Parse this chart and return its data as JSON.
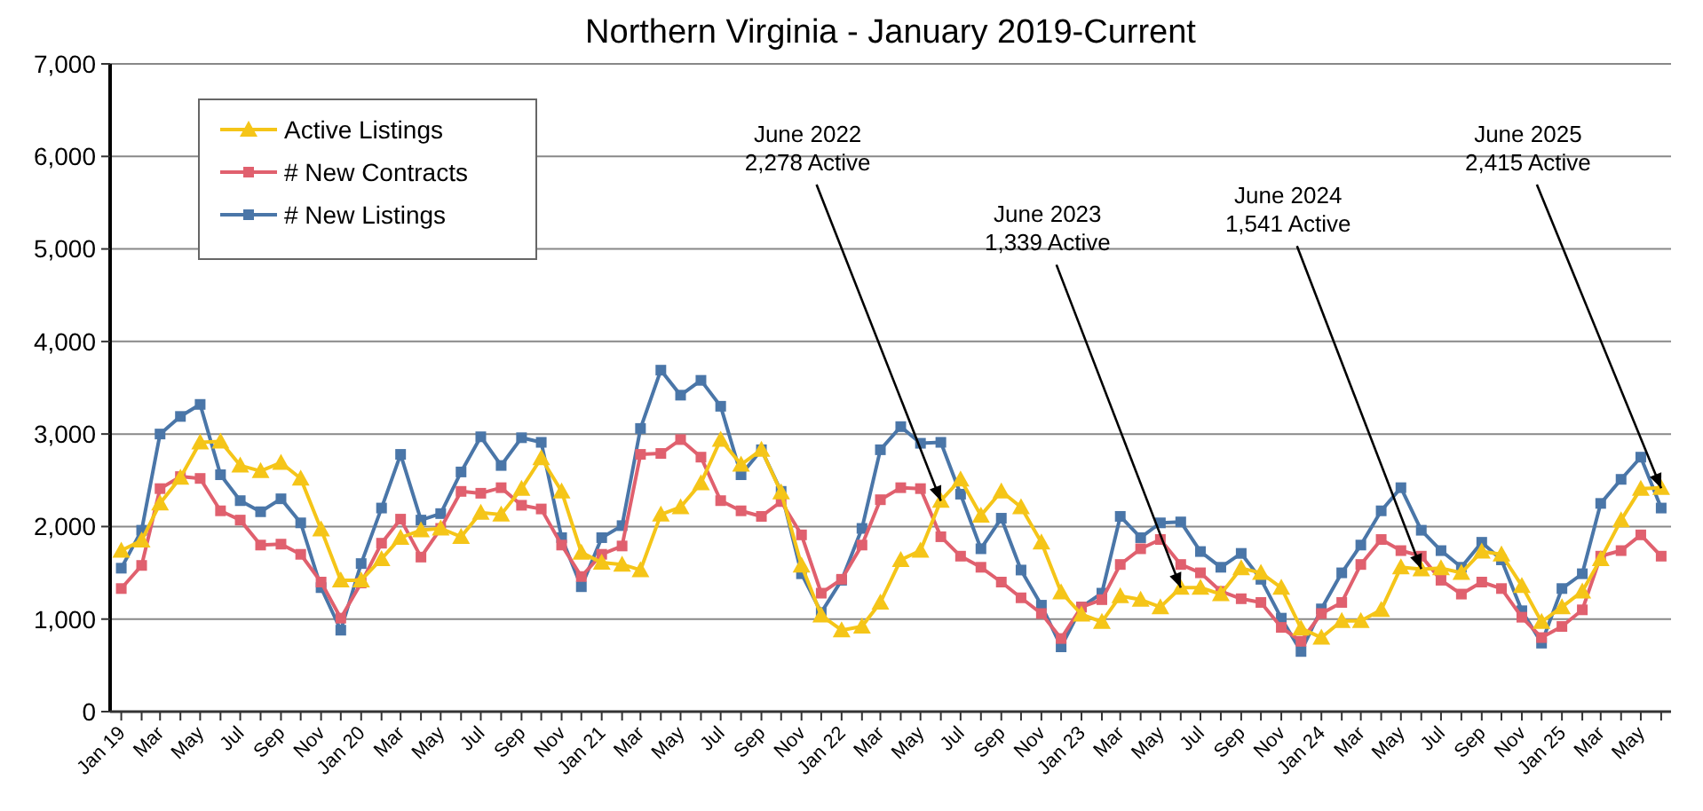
{
  "chart_data": {
    "type": "line",
    "title": "Northern Virginia - January 2019-Current",
    "x": [
      "2019-01",
      "2019-02",
      "2019-03",
      "2019-04",
      "2019-05",
      "2019-06",
      "2019-07",
      "2019-08",
      "2019-09",
      "2019-10",
      "2019-11",
      "2019-12",
      "2020-01",
      "2020-02",
      "2020-03",
      "2020-04",
      "2020-05",
      "2020-06",
      "2020-07",
      "2020-08",
      "2020-09",
      "2020-10",
      "2020-11",
      "2020-12",
      "2021-01",
      "2021-02",
      "2021-03",
      "2021-04",
      "2021-05",
      "2021-06",
      "2021-07",
      "2021-08",
      "2021-09",
      "2021-10",
      "2021-11",
      "2021-12",
      "2022-01",
      "2022-02",
      "2022-03",
      "2022-04",
      "2022-05",
      "2022-06",
      "2022-07",
      "2022-08",
      "2022-09",
      "2022-10",
      "2022-11",
      "2022-12",
      "2023-01",
      "2023-02",
      "2023-03",
      "2023-04",
      "2023-05",
      "2023-06",
      "2023-07",
      "2023-08",
      "2023-09",
      "2023-10",
      "2023-11",
      "2023-12",
      "2024-01",
      "2024-02",
      "2024-03",
      "2024-04",
      "2024-05",
      "2024-06",
      "2024-07",
      "2024-08",
      "2024-09",
      "2024-10",
      "2024-11",
      "2024-12",
      "2025-01",
      "2025-02",
      "2025-03",
      "2025-04",
      "2025-05",
      "2025-06"
    ],
    "series": [
      {
        "name": "Active Listings",
        "color": "#f5c518",
        "marker": "triangle",
        "values": [
          1740,
          1850,
          2250,
          2530,
          2910,
          2920,
          2660,
          2600,
          2690,
          2520,
          1970,
          1420,
          1420,
          1650,
          1880,
          1960,
          1980,
          1890,
          2150,
          2130,
          2410,
          2740,
          2380,
          1720,
          1610,
          1590,
          1530,
          2130,
          2210,
          2470,
          2940,
          2670,
          2830,
          2370,
          1580,
          1040,
          880,
          920,
          1180,
          1640,
          1740,
          2280,
          2510,
          2120,
          2380,
          2210,
          1830,
          1290,
          1050,
          970,
          1250,
          1210,
          1130,
          1340,
          1340,
          1270,
          1550,
          1500,
          1340,
          900,
          800,
          980,
          980,
          1100,
          1560,
          1540,
          1550,
          1500,
          1730,
          1700,
          1360,
          970,
          1130,
          1300,
          1650,
          2070,
          2410,
          2420
        ]
      },
      {
        "name": "# New Contracts",
        "color": "#e0606e",
        "marker": "square",
        "values": [
          1330,
          1580,
          2410,
          2540,
          2520,
          2170,
          2070,
          1800,
          1810,
          1700,
          1400,
          1010,
          1390,
          1820,
          2080,
          1670,
          1980,
          2380,
          2360,
          2420,
          2230,
          2190,
          1800,
          1460,
          1700,
          1790,
          2780,
          2790,
          2940,
          2750,
          2280,
          2170,
          2110,
          2270,
          1910,
          1280,
          1430,
          1800,
          2290,
          2420,
          2410,
          1890,
          1680,
          1560,
          1400,
          1230,
          1060,
          790,
          1130,
          1210,
          1590,
          1760,
          1860,
          1590,
          1500,
          1300,
          1220,
          1180,
          910,
          760,
          1060,
          1180,
          1590,
          1860,
          1740,
          1680,
          1420,
          1270,
          1400,
          1330,
          1020,
          800,
          920,
          1100,
          1680,
          1740,
          1910,
          1680
        ]
      },
      {
        "name": "# New Listings",
        "color": "#4a76a8",
        "marker": "square",
        "values": [
          1550,
          1960,
          3000,
          3190,
          3320,
          2560,
          2280,
          2160,
          2300,
          2040,
          1340,
          880,
          1600,
          2200,
          2780,
          2070,
          2140,
          2590,
          2970,
          2660,
          2960,
          2910,
          1880,
          1350,
          1880,
          2010,
          3060,
          3690,
          3420,
          3580,
          3300,
          2560,
          2830,
          2380,
          1490,
          1070,
          1420,
          1980,
          2830,
          3080,
          2900,
          2910,
          2350,
          1760,
          2090,
          1530,
          1150,
          700,
          1130,
          1280,
          2110,
          1880,
          2040,
          2050,
          1730,
          1560,
          1710,
          1430,
          1010,
          650,
          1110,
          1500,
          1800,
          2170,
          2420,
          1960,
          1740,
          1560,
          1830,
          1640,
          1090,
          740,
          1330,
          1490,
          2250,
          2510,
          2750,
          2200
        ]
      }
    ],
    "xlim": [
      "2018-12-15",
      "2025-06-16"
    ],
    "xticks": [
      {
        "value": "2019-01",
        "label": "Jan 19"
      },
      {
        "value": "2019-02",
        "label": null
      },
      {
        "value": "2019-03",
        "label": "Mar"
      },
      {
        "value": "2019-04",
        "label": null
      },
      {
        "value": "2019-05",
        "label": "May"
      },
      {
        "value": "2019-06",
        "label": null
      },
      {
        "value": "2019-07",
        "label": "Jul"
      },
      {
        "value": "2019-08",
        "label": null
      },
      {
        "value": "2019-09",
        "label": "Sep"
      },
      {
        "value": "2019-10",
        "label": null
      },
      {
        "value": "2019-11",
        "label": "Nov"
      },
      {
        "value": "2019-12",
        "label": null
      },
      {
        "value": "2020-01",
        "label": "Jan 20"
      },
      {
        "value": "2020-02",
        "label": null
      },
      {
        "value": "2020-03",
        "label": "Mar"
      },
      {
        "value": "2020-04",
        "label": null
      },
      {
        "value": "2020-05",
        "label": "May"
      },
      {
        "value": "2020-06",
        "label": null
      },
      {
        "value": "2020-07",
        "label": "Jul"
      },
      {
        "value": "2020-08",
        "label": null
      },
      {
        "value": "2020-09",
        "label": "Sep"
      },
      {
        "value": "2020-10",
        "label": null
      },
      {
        "value": "2020-11",
        "label": "Nov"
      },
      {
        "value": "2020-12",
        "label": null
      },
      {
        "value": "2021-01",
        "label": "Jan 21"
      },
      {
        "value": "2021-02",
        "label": null
      },
      {
        "value": "2021-03",
        "label": "Mar"
      },
      {
        "value": "2021-04",
        "label": null
      },
      {
        "value": "2021-05",
        "label": "May"
      },
      {
        "value": "2021-06",
        "label": null
      },
      {
        "value": "2021-07",
        "label": "Jul"
      },
      {
        "value": "2021-08",
        "label": null
      },
      {
        "value": "2021-09",
        "label": "Sep"
      },
      {
        "value": "2021-10",
        "label": null
      },
      {
        "value": "2021-11",
        "label": "Nov"
      },
      {
        "value": "2021-12",
        "label": null
      },
      {
        "value": "2022-01",
        "label": "Jan 22"
      },
      {
        "value": "2022-02",
        "label": null
      },
      {
        "value": "2022-03",
        "label": "Mar"
      },
      {
        "value": "2022-04",
        "label": null
      },
      {
        "value": "2022-05",
        "label": "May"
      },
      {
        "value": "2022-06",
        "label": null
      },
      {
        "value": "2022-07",
        "label": "Jul"
      },
      {
        "value": "2022-08",
        "label": null
      },
      {
        "value": "2022-09",
        "label": "Sep"
      },
      {
        "value": "2022-10",
        "label": null
      },
      {
        "value": "2022-11",
        "label": "Nov"
      },
      {
        "value": "2022-12",
        "label": null
      },
      {
        "value": "2023-01",
        "label": "Jan 23"
      },
      {
        "value": "2023-02",
        "label": null
      },
      {
        "value": "2023-03",
        "label": "Mar"
      },
      {
        "value": "2023-04",
        "label": null
      },
      {
        "value": "2023-05",
        "label": "May"
      },
      {
        "value": "2023-06",
        "label": null
      },
      {
        "value": "2023-07",
        "label": "Jul"
      },
      {
        "value": "2023-08",
        "label": null
      },
      {
        "value": "2023-09",
        "label": "Sep"
      },
      {
        "value": "2023-10",
        "label": null
      },
      {
        "value": "2023-11",
        "label": "Nov"
      },
      {
        "value": "2023-12",
        "label": null
      },
      {
        "value": "2024-01",
        "label": "Jan 24"
      },
      {
        "value": "2024-02",
        "label": null
      },
      {
        "value": "2024-03",
        "label": "Mar"
      },
      {
        "value": "2024-04",
        "label": null
      },
      {
        "value": "2024-05",
        "label": "May"
      },
      {
        "value": "2024-06",
        "label": null
      },
      {
        "value": "2024-07",
        "label": "Jul"
      },
      {
        "value": "2024-08",
        "label": null
      },
      {
        "value": "2024-09",
        "label": "Sep"
      },
      {
        "value": "2024-10",
        "label": null
      },
      {
        "value": "2024-11",
        "label": "Nov"
      },
      {
        "value": "2024-12",
        "label": null
      },
      {
        "value": "2025-01",
        "label": "Jan 25"
      },
      {
        "value": "2025-02",
        "label": null
      },
      {
        "value": "2025-03",
        "label": "Mar"
      },
      {
        "value": "2025-04",
        "label": null
      },
      {
        "value": "2025-05",
        "label": "May"
      },
      {
        "value": "2025-06",
        "label": null
      }
    ],
    "ylim": [
      0,
      7000
    ],
    "yticks": [
      {
        "value": 0,
        "label": "0"
      },
      {
        "value": 1000,
        "label": "1,000"
      },
      {
        "value": 2000,
        "label": "2,000"
      },
      {
        "value": 3000,
        "label": "3,000"
      },
      {
        "value": 4000,
        "label": "4,000"
      },
      {
        "value": 5000,
        "label": "5,000"
      },
      {
        "value": 6000,
        "label": "6,000"
      },
      {
        "value": 7000,
        "label": "7,000"
      }
    ],
    "grid": "y",
    "legend": "top left",
    "line_style": "solid",
    "annotations": [
      {
        "text": "June 2022\n2,278 Active",
        "x": "2022-06",
        "y": 2278
      },
      {
        "text": "June 2023\n1,339 Active",
        "x": "2023-06",
        "y": 1339
      },
      {
        "text": "June 2024\n1,541 Active",
        "x": "2024-06",
        "y": 1541
      },
      {
        "text": "June 2025\n2,415 Active",
        "x": "2025-06",
        "y": 2415
      }
    ]
  }
}
